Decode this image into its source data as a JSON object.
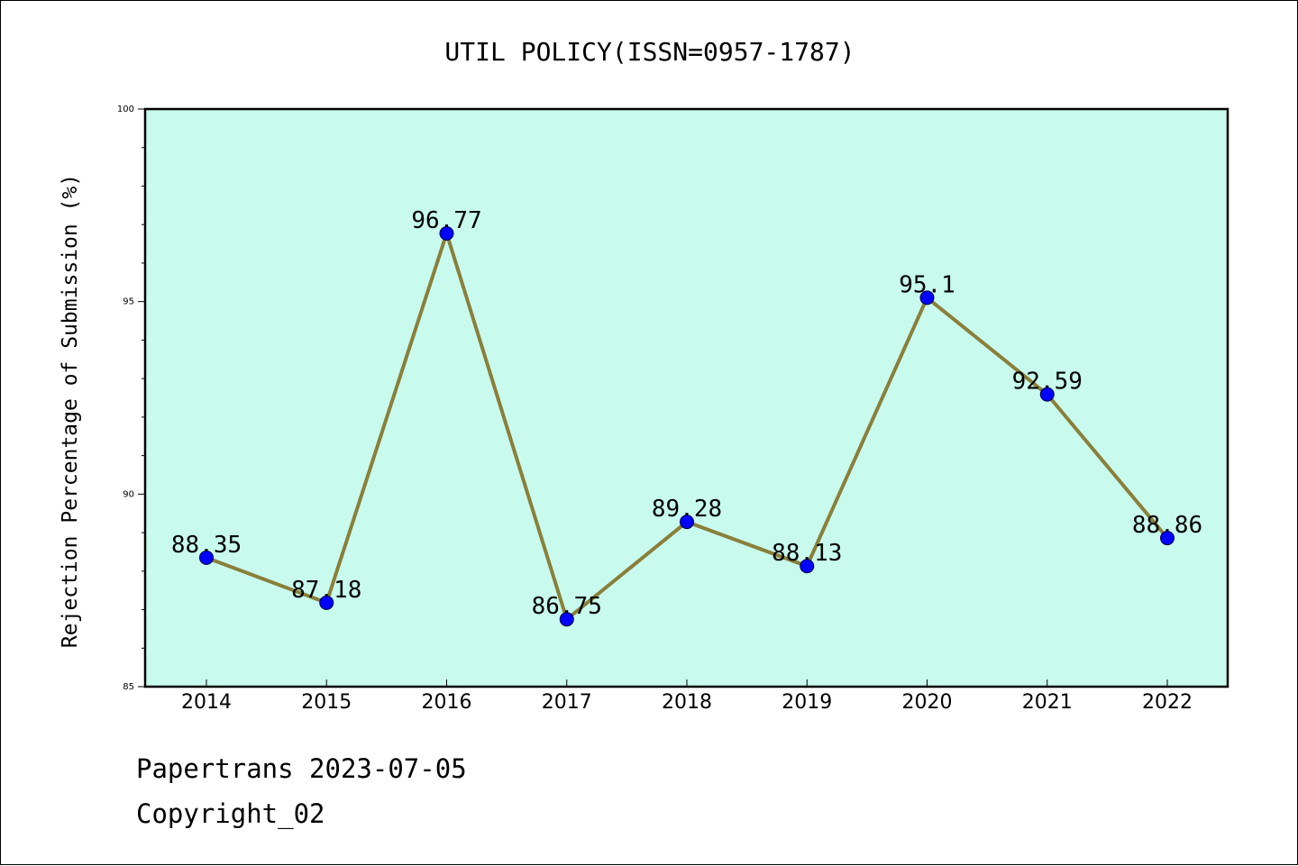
{
  "chart_data": {
    "type": "line",
    "title": "UTIL POLICY(ISSN=0957-1787)",
    "xlabel": "",
    "ylabel": "Rejection Percentage of Submission (%)",
    "categories": [
      "2014",
      "2015",
      "2016",
      "2017",
      "2018",
      "2019",
      "2020",
      "2021",
      "2022"
    ],
    "series": [
      {
        "values": [
          88.35,
          87.18,
          96.77,
          86.75,
          89.28,
          88.13,
          95.1,
          92.59,
          88.86
        ],
        "labels": [
          "88.35",
          "87.18",
          "96.77",
          "86.75",
          "89.28",
          "88.13",
          "95.1",
          "92.59",
          "88.86"
        ]
      }
    ],
    "ylim": [
      85,
      100
    ],
    "yticks": [
      "85",
      "90",
      "95",
      "100"
    ],
    "grid": false,
    "legend": "none",
    "colors": {
      "plot_background": "#c8fbee",
      "line": "#8a7f3a",
      "marker": "#0000ff"
    }
  },
  "footer": {
    "line1": "Papertrans 2023-07-05",
    "line2": "Copyright_02"
  }
}
